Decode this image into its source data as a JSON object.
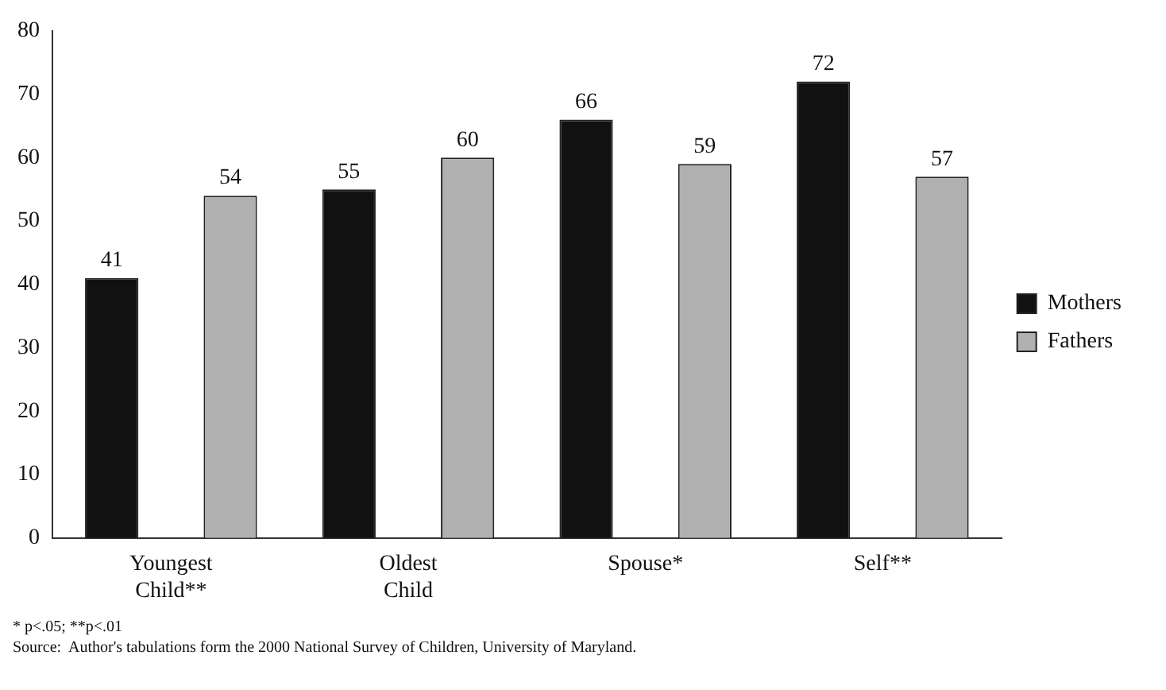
{
  "chart_data": {
    "type": "bar",
    "categories": [
      "Youngest Child**",
      "Oldest Child",
      "Spouse*",
      "Self**"
    ],
    "series": [
      {
        "name": "Mothers",
        "color": "#111111",
        "values": [
          41,
          55,
          66,
          72
        ]
      },
      {
        "name": "Fathers",
        "color": "#b0b0b0",
        "values": [
          54,
          60,
          59,
          57
        ]
      }
    ],
    "ylim": [
      0,
      80
    ],
    "yticks": [
      0,
      10,
      20,
      30,
      40,
      50,
      60,
      70,
      80
    ],
    "grid": false,
    "legend": "right",
    "data_labels": true,
    "annotations": [
      "* p<.05; **p<.01",
      "Source:  Author's tabulations form the 2000 National Survey of Children, University of Maryland."
    ]
  }
}
